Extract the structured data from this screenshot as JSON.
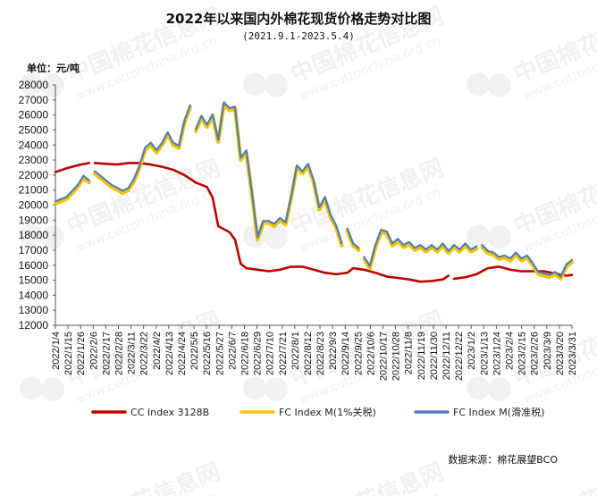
{
  "title": "2022年以来国内外棉花现货价格走势对比图",
  "subtitle": "(2021.9.1-2023.5.4)",
  "unit_label": "单位：元/吨",
  "source": "数据来源：棉花展望BCO",
  "colors": {
    "cc": "#c00000",
    "fc_tariff": "#f5c400",
    "fc_sliding": "#4f7eb8"
  },
  "chart_data": {
    "type": "line",
    "title": "2022年以来国内外棉花现货价格走势对比图",
    "subtitle": "(2021.9.1-2023.5.4)",
    "ylabel": "单位：元/吨",
    "ylim": [
      12000,
      28000
    ],
    "yticks": [
      12000,
      13000,
      14000,
      15000,
      16000,
      17000,
      18000,
      19000,
      20000,
      21000,
      22000,
      23000,
      24000,
      25000,
      26000,
      27000,
      28000
    ],
    "grid": false,
    "legend_position": "bottom",
    "x_tick_labels": [
      "2022/1/4",
      "2022/1/15",
      "2022/1/26",
      "2022/2/6",
      "2022/2/17",
      "2022/2/28",
      "2022/3/11",
      "2022/3/22",
      "2022/4/2",
      "2022/4/13",
      "2022/4/24",
      "2022/5/5",
      "2022/5/16",
      "2022/5/27",
      "2022/6/7",
      "2022/6/18",
      "2022/6/29",
      "2022/7/10",
      "2022/7/21",
      "2022/8/1",
      "2022/8/12",
      "2022/8/23",
      "2022/9/3",
      "2022/9/14",
      "2022/9/25",
      "2022/10/6",
      "2022/10/17",
      "2022/10/28",
      "2022/11/8",
      "2022/11/19",
      "2022/11/30",
      "2022/12/11",
      "2022/12/22",
      "2023/1/2",
      "2023/1/13",
      "2023/1/24",
      "2023/2/4",
      "2023/2/15",
      "2023/2/26",
      "2023/3/9",
      "2023/3/20",
      "2023/3/31"
    ],
    "series": [
      {
        "name": "CC Index 3128B",
        "color": "#c00000",
        "points": [
          [
            0,
            22200
          ],
          [
            2,
            22450
          ],
          [
            4,
            22650
          ],
          [
            6,
            22800
          ],
          [
            6.5,
            null
          ],
          [
            7,
            22800
          ],
          [
            9,
            22750
          ],
          [
            11,
            22700
          ],
          [
            13,
            22800
          ],
          [
            15,
            22800
          ],
          [
            17,
            22700
          ],
          [
            19,
            22550
          ],
          [
            21,
            22350
          ],
          [
            23,
            22000
          ],
          [
            25,
            21500
          ],
          [
            27,
            21200
          ],
          [
            28,
            20500
          ],
          [
            29,
            18600
          ],
          [
            31,
            18200
          ],
          [
            32,
            17700
          ],
          [
            33,
            16100
          ],
          [
            34,
            15800
          ],
          [
            36,
            15700
          ],
          [
            38,
            15600
          ],
          [
            40,
            15700
          ],
          [
            42,
            15900
          ],
          [
            44,
            15900
          ],
          [
            46,
            15700
          ],
          [
            48,
            15500
          ],
          [
            50,
            15400
          ],
          [
            52,
            15500
          ],
          [
            53,
            15800
          ],
          [
            55,
            15700
          ],
          [
            57,
            15500
          ],
          [
            59,
            15250
          ],
          [
            61,
            15150
          ],
          [
            63,
            15050
          ],
          [
            65,
            14900
          ],
          [
            67,
            14950
          ],
          [
            69,
            15050
          ],
          [
            70,
            15300
          ],
          [
            70.5,
            null
          ],
          [
            71,
            15100
          ],
          [
            73,
            15200
          ],
          [
            75,
            15400
          ],
          [
            77,
            15800
          ],
          [
            79,
            15900
          ],
          [
            81,
            15700
          ],
          [
            83,
            15600
          ],
          [
            85,
            15600
          ],
          [
            87,
            15600
          ],
          [
            89,
            15450
          ],
          [
            91,
            15300
          ],
          [
            92,
            15350
          ]
        ]
      },
      {
        "name": "FC Index M(1%关税)",
        "color": "#f5c400",
        "points": [
          [
            0,
            20100
          ],
          [
            2,
            20400
          ],
          [
            4,
            21200
          ],
          [
            5,
            21800
          ],
          [
            6,
            21500
          ],
          [
            6.5,
            null
          ],
          [
            7,
            22100
          ],
          [
            8,
            21800
          ],
          [
            10,
            21200
          ],
          [
            12,
            20800
          ],
          [
            13,
            21000
          ],
          [
            14,
            21600
          ],
          [
            15,
            22500
          ],
          [
            16,
            23700
          ],
          [
            17,
            24000
          ],
          [
            18,
            23500
          ],
          [
            19,
            24000
          ],
          [
            20,
            24700
          ],
          [
            21,
            24000
          ],
          [
            22,
            23800
          ],
          [
            23,
            25500
          ],
          [
            24,
            26500
          ],
          [
            24.5,
            null
          ],
          [
            25,
            24900
          ],
          [
            26,
            25800
          ],
          [
            27,
            25200
          ],
          [
            28,
            25900
          ],
          [
            29,
            24200
          ],
          [
            30,
            26700
          ],
          [
            31,
            26300
          ],
          [
            32,
            26400
          ],
          [
            33,
            23000
          ],
          [
            34,
            23500
          ],
          [
            35,
            20700
          ],
          [
            36,
            17700
          ],
          [
            37,
            18800
          ],
          [
            38,
            18800
          ],
          [
            39,
            18600
          ],
          [
            40,
            19000
          ],
          [
            41,
            18700
          ],
          [
            42,
            20500
          ],
          [
            43,
            22500
          ],
          [
            44,
            22100
          ],
          [
            45,
            22600
          ],
          [
            46,
            21500
          ],
          [
            47,
            19700
          ],
          [
            48,
            20400
          ],
          [
            49,
            19200
          ],
          [
            50,
            18500
          ],
          [
            51,
            17300
          ],
          [
            51.5,
            null
          ],
          [
            52,
            18300
          ],
          [
            53,
            17300
          ],
          [
            54,
            17000
          ],
          [
            54.5,
            null
          ],
          [
            55,
            16400
          ],
          [
            56,
            15800
          ],
          [
            57,
            17200
          ],
          [
            58,
            18200
          ],
          [
            59,
            18100
          ],
          [
            60,
            17300
          ],
          [
            61,
            17600
          ],
          [
            62,
            17200
          ],
          [
            63,
            17400
          ],
          [
            64,
            17000
          ],
          [
            65,
            17200
          ],
          [
            66,
            16900
          ],
          [
            67,
            17200
          ],
          [
            68,
            16900
          ],
          [
            69,
            17300
          ],
          [
            70,
            16800
          ],
          [
            71,
            17200
          ],
          [
            72,
            16900
          ],
          [
            73,
            17300
          ],
          [
            74,
            16900
          ],
          [
            75,
            17100
          ],
          [
            75.5,
            null
          ],
          [
            76,
            17200
          ],
          [
            77,
            16800
          ],
          [
            78,
            16700
          ],
          [
            79,
            16400
          ],
          [
            80,
            16500
          ],
          [
            81,
            16300
          ],
          [
            82,
            16700
          ],
          [
            83,
            16300
          ],
          [
            84,
            16500
          ],
          [
            85,
            16000
          ],
          [
            86,
            15400
          ],
          [
            87,
            15300
          ],
          [
            88,
            15200
          ],
          [
            89,
            15400
          ],
          [
            90,
            15100
          ],
          [
            91,
            15900
          ],
          [
            92,
            16200
          ]
        ]
      },
      {
        "name": "FC Index M(滑准税)",
        "color": "#4f7eb8",
        "points": [
          [
            0,
            20250
          ],
          [
            2,
            20550
          ],
          [
            4,
            21350
          ],
          [
            5,
            21950
          ],
          [
            6,
            21650
          ],
          [
            6.5,
            null
          ],
          [
            7,
            22250
          ],
          [
            8,
            21950
          ],
          [
            10,
            21350
          ],
          [
            12,
            20950
          ],
          [
            13,
            21150
          ],
          [
            14,
            21750
          ],
          [
            15,
            22650
          ],
          [
            16,
            23850
          ],
          [
            17,
            24150
          ],
          [
            18,
            23650
          ],
          [
            19,
            24150
          ],
          [
            20,
            24850
          ],
          [
            21,
            24150
          ],
          [
            22,
            23950
          ],
          [
            23,
            25650
          ],
          [
            24,
            26650
          ],
          [
            24.5,
            null
          ],
          [
            25,
            25050
          ],
          [
            26,
            25950
          ],
          [
            27,
            25350
          ],
          [
            28,
            26050
          ],
          [
            29,
            24350
          ],
          [
            30,
            26850
          ],
          [
            31,
            26450
          ],
          [
            32,
            26550
          ],
          [
            33,
            23150
          ],
          [
            34,
            23650
          ],
          [
            35,
            20850
          ],
          [
            36,
            17850
          ],
          [
            37,
            18950
          ],
          [
            38,
            18950
          ],
          [
            39,
            18750
          ],
          [
            40,
            19150
          ],
          [
            41,
            18850
          ],
          [
            42,
            20650
          ],
          [
            43,
            22650
          ],
          [
            44,
            22250
          ],
          [
            45,
            22750
          ],
          [
            46,
            21650
          ],
          [
            47,
            19850
          ],
          [
            48,
            20550
          ],
          [
            49,
            19350
          ],
          [
            50,
            18650
          ],
          [
            51,
            17450
          ],
          [
            51.5,
            null
          ],
          [
            52,
            18450
          ],
          [
            53,
            17450
          ],
          [
            54,
            17150
          ],
          [
            54.5,
            null
          ],
          [
            55,
            16550
          ],
          [
            56,
            15950
          ],
          [
            57,
            17350
          ],
          [
            58,
            18350
          ],
          [
            59,
            18250
          ],
          [
            60,
            17450
          ],
          [
            61,
            17750
          ],
          [
            62,
            17350
          ],
          [
            63,
            17550
          ],
          [
            64,
            17150
          ],
          [
            65,
            17350
          ],
          [
            66,
            17050
          ],
          [
            67,
            17350
          ],
          [
            68,
            17050
          ],
          [
            69,
            17450
          ],
          [
            70,
            16950
          ],
          [
            71,
            17350
          ],
          [
            72,
            17050
          ],
          [
            73,
            17450
          ],
          [
            74,
            17050
          ],
          [
            75,
            17250
          ],
          [
            75.5,
            null
          ],
          [
            76,
            17350
          ],
          [
            77,
            16950
          ],
          [
            78,
            16850
          ],
          [
            79,
            16550
          ],
          [
            80,
            16650
          ],
          [
            81,
            16450
          ],
          [
            82,
            16850
          ],
          [
            83,
            16450
          ],
          [
            84,
            16650
          ],
          [
            85,
            16150
          ],
          [
            86,
            15550
          ],
          [
            87,
            15450
          ],
          [
            88,
            15350
          ],
          [
            89,
            15550
          ],
          [
            90,
            15250
          ],
          [
            91,
            16050
          ],
          [
            92,
            16350
          ]
        ]
      }
    ]
  }
}
